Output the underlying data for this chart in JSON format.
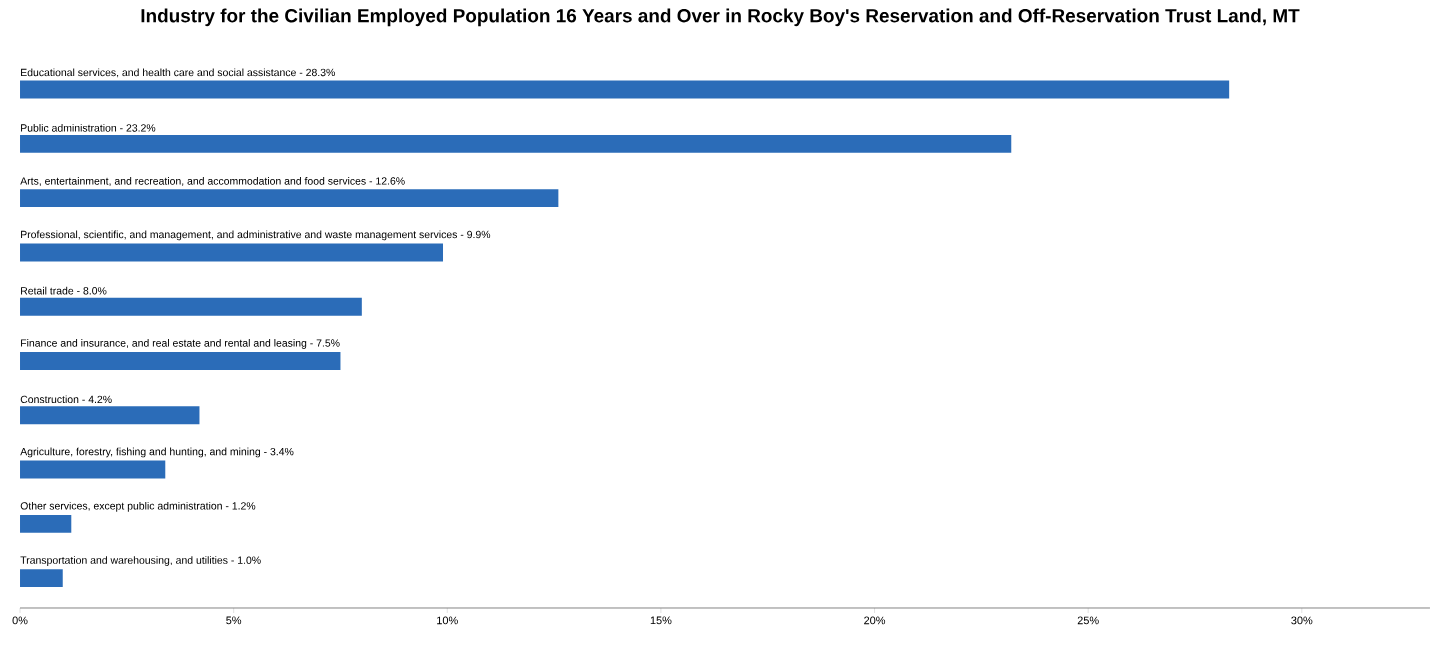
{
  "chart_data": {
    "type": "bar",
    "orientation": "horizontal",
    "title": "Industry for the Civilian Employed Population 16 Years and Over in Rocky Boy's Reservation and Off-Reservation Trust Land, MT",
    "categories": [
      "Educational services, and health care and social assistance - 28.3%",
      "Public administration - 23.2%",
      "Arts, entertainment, and recreation, and accommodation and food services - 12.6%",
      "Professional, scientific, and management, and administrative and waste management services - 9.9%",
      "Retail trade - 8.0%",
      "Finance and insurance, and real estate and rental and leasing - 7.5%",
      "Construction - 4.2%",
      "Agriculture, forestry, fishing and hunting, and mining - 3.4%",
      "Other services, except public administration - 1.2%",
      "Transportation and warehousing, and utilities - 1.0%"
    ],
    "values": [
      28.3,
      23.2,
      12.6,
      9.9,
      8.0,
      7.5,
      4.2,
      3.4,
      1.2,
      1.0
    ],
    "color": "#2b6cb8",
    "xlim": [
      0,
      33
    ],
    "xticks": [
      {
        "value": 0,
        "label": "0%"
      },
      {
        "value": 5,
        "label": "5%"
      },
      {
        "value": 10,
        "label": "10%"
      },
      {
        "value": 15,
        "label": "15%"
      },
      {
        "value": 20,
        "label": "20%"
      },
      {
        "value": 25,
        "label": "25%"
      },
      {
        "value": 30,
        "label": "30%"
      }
    ]
  }
}
